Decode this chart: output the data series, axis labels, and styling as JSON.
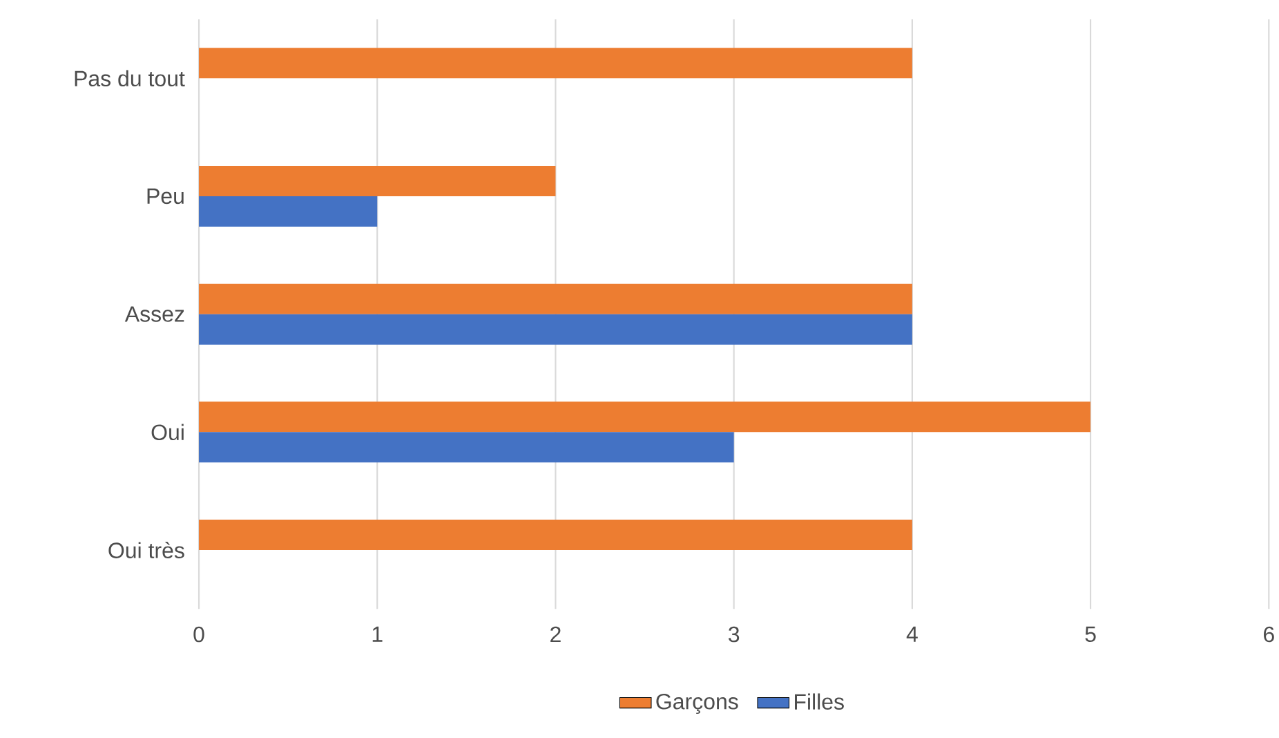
{
  "chart_data": {
    "type": "bar",
    "orientation": "horizontal",
    "categories": [
      "Pas du tout",
      "Peu",
      "Assez",
      "Oui",
      "Oui très"
    ],
    "series": [
      {
        "name": "Garçons",
        "color": "#ed7d31",
        "values": [
          4,
          2,
          4,
          5,
          4
        ]
      },
      {
        "name": "Filles",
        "color": "#4472c4",
        "values": [
          null,
          1,
          4,
          3,
          null
        ]
      }
    ],
    "xlim": [
      0,
      6
    ],
    "xticks": [
      0,
      1,
      2,
      3,
      4,
      5,
      6
    ],
    "grid": "x",
    "legend": "bottom"
  }
}
